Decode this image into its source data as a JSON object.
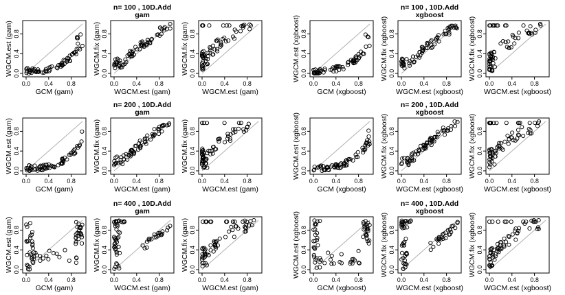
{
  "chart_data": {
    "type": "scatter",
    "axis_range": [
      0,
      1
    ],
    "ticks": [
      0.0,
      0.4,
      0.8
    ],
    "tick_labels": [
      "0.0",
      "0.4",
      "0.8"
    ],
    "reference_line": "y = x",
    "rows": [
      {
        "groups": [
          {
            "title1": "n= 100 ,  10D.Add",
            "title2": "gam",
            "plots": [
              {
                "xlabel": "GCM (gam)",
                "ylabel": "WGCM.est (gam)",
                "seed": 11,
                "pattern": "low"
              },
              {
                "xlabel": "WGCM.est (gam)",
                "ylabel": "WGCM.fix (gam)",
                "seed": 12,
                "pattern": "curve"
              },
              {
                "xlabel": "WGCM.est (gam)",
                "ylabel": "WGCM.fix (gam)",
                "seed": 13,
                "pattern": "steep"
              }
            ]
          },
          {
            "title1": "n= 100 ,  10D.Add",
            "title2": "xgboost",
            "plots": [
              {
                "xlabel": "GCM (xgboost)",
                "ylabel": "WGCM.est (xgboost)",
                "seed": 14,
                "pattern": "low"
              },
              {
                "xlabel": "WGCM.est (xgboost)",
                "ylabel": "WGCM.fix (xgboost)",
                "seed": 15,
                "pattern": "curve"
              },
              {
                "xlabel": "WGCM.est (xgboost)",
                "ylabel": "WGCM.fix (xgboost)",
                "seed": 16,
                "pattern": "steep"
              }
            ]
          }
        ]
      },
      {
        "groups": [
          {
            "title1": "n= 200 ,  10D.Add",
            "title2": "gam",
            "plots": [
              {
                "xlabel": "GCM (gam)",
                "ylabel": "WGCM.est (gam)",
                "seed": 21,
                "pattern": "low"
              },
              {
                "xlabel": "WGCM.est (gam)",
                "ylabel": "WGCM.fix (gam)",
                "seed": 22,
                "pattern": "curve"
              },
              {
                "xlabel": "WGCM.est (gam)",
                "ylabel": "WGCM.fix (gam)",
                "seed": 23,
                "pattern": "steep"
              }
            ]
          },
          {
            "title1": "n= 200 ,  10D.Add",
            "title2": "xgboost",
            "plots": [
              {
                "xlabel": "GCM (xgboost)",
                "ylabel": "WGCM.est (xgboost)",
                "seed": 24,
                "pattern": "low"
              },
              {
                "xlabel": "WGCM.est (xgboost)",
                "ylabel": "WGCM.fix (xgboost)",
                "seed": 25,
                "pattern": "curve"
              },
              {
                "xlabel": "WGCM.est (xgboost)",
                "ylabel": "WGCM.fix (xgboost)",
                "seed": 26,
                "pattern": "steep"
              }
            ]
          }
        ]
      },
      {
        "groups": [
          {
            "title1": "n= 400 ,  10D.Add",
            "title2": "gam",
            "plots": [
              {
                "xlabel": "GCM (gam)",
                "ylabel": "WGCM.est (gam)",
                "seed": 31,
                "pattern": "split"
              },
              {
                "xlabel": "WGCM.est (gam)",
                "ylabel": "WGCM.fix (gam)",
                "seed": 32,
                "pattern": "split2"
              },
              {
                "xlabel": "WGCM.est (gam)",
                "ylabel": "WGCM.fix (gam)",
                "seed": 33,
                "pattern": "steep"
              }
            ]
          },
          {
            "title1": "n= 400 ,  10D.Add",
            "title2": "xgboost",
            "plots": [
              {
                "xlabel": "GCM (xgboost)",
                "ylabel": "WGCM.est (xgboost)",
                "seed": 34,
                "pattern": "split"
              },
              {
                "xlabel": "WGCM.est (xgboost)",
                "ylabel": "WGCM.fix (xgboost)",
                "seed": 35,
                "pattern": "split2"
              },
              {
                "xlabel": "WGCM.est (xgboost)",
                "ylabel": "WGCM.fix (xgboost)",
                "seed": 36,
                "pattern": "steep"
              }
            ]
          }
        ]
      }
    ]
  }
}
